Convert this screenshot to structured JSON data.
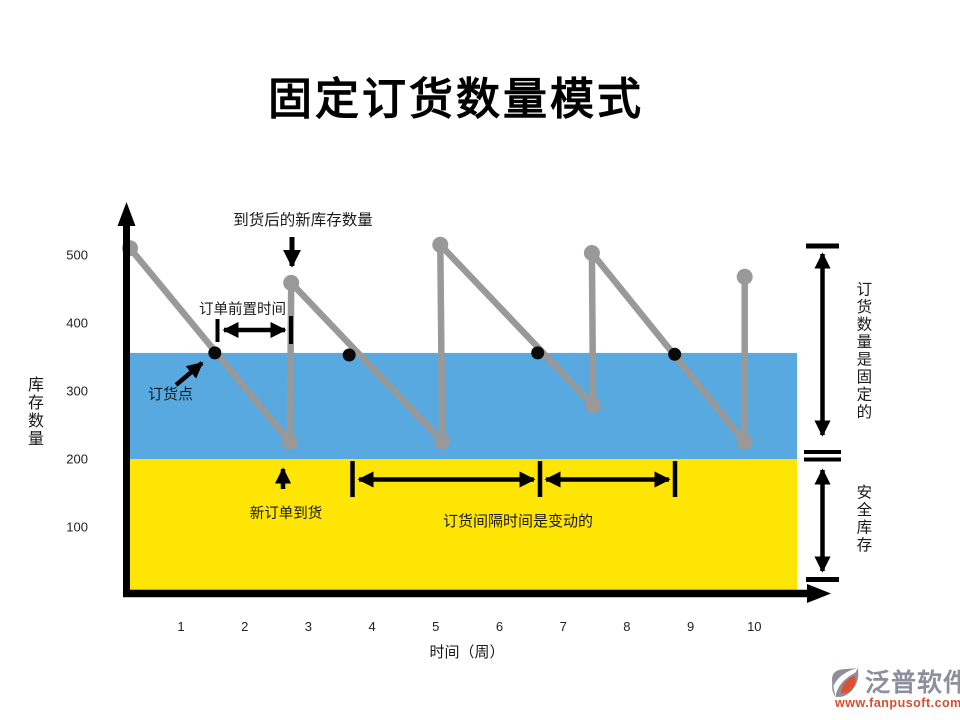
{
  "title": "固定订货数量模式",
  "colors": {
    "reorder_band_blue": "#58A9E0",
    "safety_band_yellow": "#FFE503",
    "inventory_line_gray": "#999999",
    "annotation_black": "#000000",
    "logo_gray": "#8E8E9C",
    "logo_orange": "#D4502F"
  },
  "axes": {
    "y_title": "库存数量",
    "x_title": "时间（周）"
  },
  "annotations": {
    "new_stock_after_arrival": "到货后的新库存数量",
    "lead_time": "订单前置时间",
    "reorder_point": "订货点",
    "new_order_arrival": "新订单到货",
    "variable_interval": "订货间隔时间是变动的",
    "fixed_quantity": "订货数量是固定的",
    "safety_stock": "安全库存"
  },
  "chart_data": {
    "type": "line",
    "title": "固定订货数量模式",
    "xlabel": "时间（周）",
    "ylabel": "库存数量",
    "x_ticks": [
      1,
      2,
      3,
      4,
      5,
      6,
      7,
      8,
      9,
      10
    ],
    "y_ticks": [
      500,
      400,
      300,
      200,
      100
    ],
    "xlim": [
      0,
      10.8
    ],
    "ylim": [
      0,
      575
    ],
    "grid": false,
    "legend_position": "none",
    "reorder_level": 356,
    "safety_stock_level": 200,
    "bands": [
      {
        "name": "reorder-zone",
        "from": 200,
        "to": 356,
        "color": "#58A9E0"
      },
      {
        "name": "safety-stock-zone",
        "from": 0,
        "to": 200,
        "color": "#FFE503"
      }
    ],
    "series": [
      {
        "name": "inventory-level",
        "color": "#999999",
        "points": [
          [
            0.2,
            510
          ],
          [
            2.71,
            225
          ],
          [
            2.73,
            459
          ],
          [
            5.1,
            226
          ],
          [
            5.07,
            515
          ],
          [
            7.47,
            279
          ],
          [
            7.45,
            503
          ],
          [
            9.85,
            225
          ],
          [
            9.85,
            468
          ]
        ]
      }
    ],
    "reorder_points": [
      [
        1.53,
        356
      ],
      [
        3.64,
        353
      ],
      [
        6.6,
        356
      ],
      [
        8.75,
        354
      ]
    ]
  },
  "logo": {
    "brand": "泛普软件",
    "website": "www.fanpusoft.com"
  }
}
